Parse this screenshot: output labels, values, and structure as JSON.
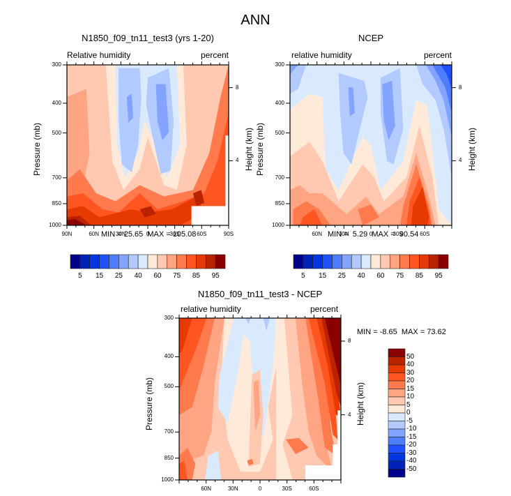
{
  "figure": {
    "title": "ANN"
  },
  "chart_data": [
    {
      "type": "heatmap",
      "panel": "model",
      "title": "N1850_f09_tn11_test3 (yrs 1-20)",
      "left_label": "Relative humidity",
      "right_label": "percent",
      "xlabel": "",
      "ylabel": "Pressure (mb)",
      "y2label": "Height (km)",
      "x_tick_labels": [
        "90N",
        "60N",
        "30N",
        "0",
        "30S",
        "60S",
        "90S"
      ],
      "x_range": [
        "90N",
        "90S"
      ],
      "y_tick_labels": [
        "300",
        "400",
        "500",
        "700",
        "850",
        "1000"
      ],
      "y2_tick_labels": [
        "8",
        "4"
      ],
      "ylim": [
        1000,
        300
      ],
      "min_label": "MIN =",
      "min_value": "25.65",
      "max_label": "MAX =",
      "max_value": "105.08",
      "colorbar": {
        "orientation": "horizontal",
        "levels": [
          "5",
          "10",
          "15",
          "20",
          "25",
          "30",
          "40",
          "50",
          "60",
          "70",
          "75",
          "80",
          "85",
          "90",
          "95"
        ],
        "tick_labels": [
          "5",
          "15",
          "25",
          "40",
          "60",
          "75",
          "85",
          "95"
        ],
        "colors": [
          "#00008c",
          "#0022b8",
          "#0035e0",
          "#1f51ff",
          "#4f7dff",
          "#82a4ff",
          "#b3caff",
          "#d9eaff",
          "#ffead9",
          "#ffc8b0",
          "#ffa584",
          "#ff7a4c",
          "#ff5521",
          "#e63a00",
          "#bb2200",
          "#8a0000"
        ]
      }
    },
    {
      "type": "heatmap",
      "panel": "obs",
      "title": "NCEP",
      "left_label": "relative humidity",
      "right_label": "percent",
      "xlabel": "",
      "ylabel": "Pressure (mb)",
      "y2label": "Height (km)",
      "x_tick_labels": [
        "60N",
        "30N",
        "0",
        "30S",
        "60S"
      ],
      "y_tick_labels": [
        "300",
        "400",
        "500",
        "700",
        "850",
        "1000"
      ],
      "y2_tick_labels": [
        "8",
        "4"
      ],
      "ylim": [
        1000,
        300
      ],
      "min_label": "MIN =",
      "min_value": "5.29",
      "max_label": "MAX =",
      "max_value": "90.54",
      "colorbar": {
        "orientation": "horizontal",
        "levels": [
          "5",
          "10",
          "15",
          "20",
          "25",
          "30",
          "40",
          "50",
          "60",
          "70",
          "75",
          "80",
          "85",
          "90",
          "95"
        ],
        "tick_labels": [
          "5",
          "15",
          "25",
          "40",
          "60",
          "75",
          "85",
          "95"
        ],
        "colors": [
          "#00008c",
          "#0022b8",
          "#0035e0",
          "#1f51ff",
          "#4f7dff",
          "#82a4ff",
          "#b3caff",
          "#d9eaff",
          "#ffead9",
          "#ffc8b0",
          "#ffa584",
          "#ff7a4c",
          "#ff5521",
          "#e63a00",
          "#bb2200",
          "#8a0000"
        ]
      }
    },
    {
      "type": "heatmap",
      "panel": "difference",
      "title": "N1850_f09_tn11_test3 - NCEP",
      "left_label": "relative humidity",
      "right_label": "percent",
      "xlabel": "",
      "ylabel": "Pressure (mb)",
      "y2label": "Height (km)",
      "x_tick_labels": [
        "60N",
        "30N",
        "0",
        "30S",
        "60S"
      ],
      "y_tick_labels": [
        "300",
        "400",
        "500",
        "700",
        "850",
        "1000"
      ],
      "y2_tick_labels": [
        "8",
        "4"
      ],
      "ylim": [
        1000,
        300
      ],
      "min_label": "MIN =",
      "min_value": "-8.65",
      "max_label": "MAX =",
      "max_value": "73.62",
      "colorbar": {
        "orientation": "vertical",
        "tick_labels": [
          "50",
          "40",
          "30",
          "20",
          "15",
          "10",
          "5",
          "0",
          "-5",
          "-10",
          "-15",
          "-20",
          "-30",
          "-40",
          "-50"
        ],
        "colors": [
          "#8a0000",
          "#bb2200",
          "#e63a00",
          "#ff5521",
          "#ff7a4c",
          "#ffa584",
          "#ffc8b0",
          "#ffead9",
          "#d9eaff",
          "#b3caff",
          "#82a4ff",
          "#4f7dff",
          "#1f51ff",
          "#0035e0",
          "#0022b8",
          "#00008c"
        ]
      }
    }
  ]
}
